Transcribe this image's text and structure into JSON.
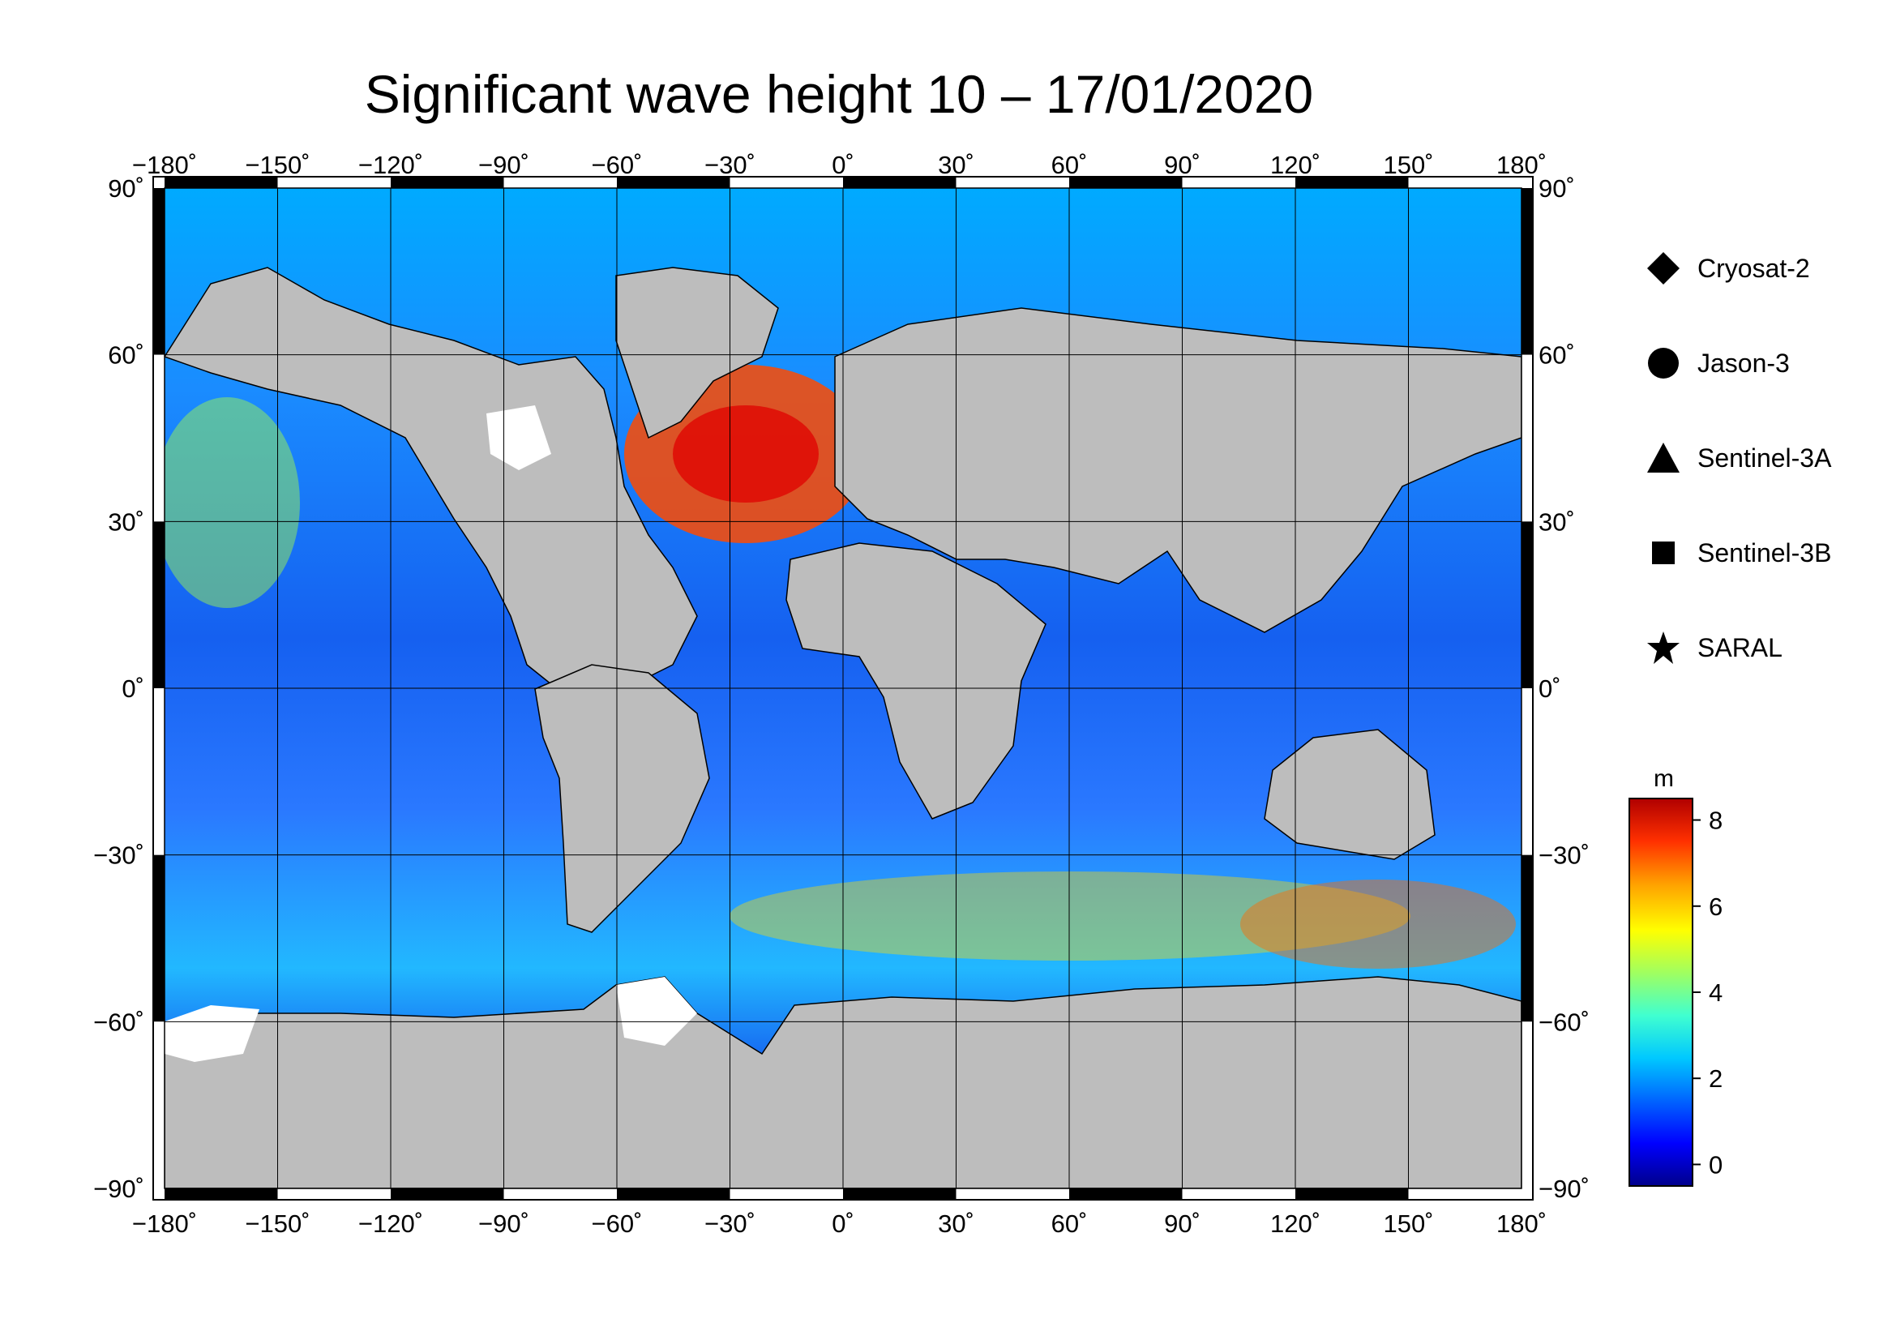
{
  "title": "Significant wave height 10 – 17/01/2020",
  "map": {
    "lon_ticks": [
      "−180˚",
      "−150˚",
      "−120˚",
      "−90˚",
      "−60˚",
      "−30˚",
      "0˚",
      "30˚",
      "60˚",
      "90˚",
      "120˚",
      "150˚",
      "180˚"
    ],
    "lat_ticks": [
      "90˚",
      "60˚",
      "30˚",
      "0˚",
      "−30˚",
      "−60˚",
      "−90˚"
    ],
    "land_color": "#bdbdbd",
    "ice_color": "#ffffff"
  },
  "legend": {
    "items": [
      {
        "label": "Cryosat-2",
        "symbol": "diamond-icon"
      },
      {
        "label": "Jason-3",
        "symbol": "circle-icon"
      },
      {
        "label": "Sentinel-3A",
        "symbol": "triangle-icon"
      },
      {
        "label": "Sentinel-3B",
        "symbol": "square-icon"
      },
      {
        "label": "SARAL",
        "symbol": "star-icon"
      }
    ]
  },
  "colorbar": {
    "unit": "m",
    "ticks": [
      "8",
      "6",
      "4",
      "2",
      "0"
    ],
    "range": [
      -0.5,
      8.5
    ],
    "colors": [
      "#00008b",
      "#0000ff",
      "#0064ff",
      "#00c8ff",
      "#40ffd0",
      "#a0ff60",
      "#ffff00",
      "#ffa000",
      "#ff3000",
      "#b00000"
    ]
  }
}
